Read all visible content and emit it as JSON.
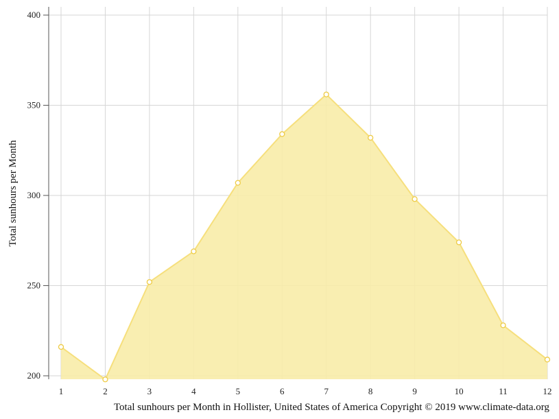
{
  "chart_data": {
    "type": "area",
    "x": [
      1,
      2,
      3,
      4,
      5,
      6,
      7,
      8,
      9,
      10,
      11,
      12
    ],
    "series": [
      {
        "values": [
          216,
          198,
          252,
          269,
          307,
          334,
          356,
          332,
          298,
          274,
          228,
          209
        ]
      }
    ],
    "xlabel": "",
    "ylabel": "Total sunhours per Month",
    "ylim": [
      200,
      400
    ],
    "yticks": [
      200,
      250,
      300,
      350,
      400
    ],
    "xticks": [
      1,
      2,
      3,
      4,
      5,
      6,
      7,
      8,
      9,
      10,
      11,
      12
    ],
    "grid": true,
    "fill_color": "#f8eca9",
    "line_color": "#f6df7c",
    "marker_stroke": "#eecb45",
    "caption": "Total sunhours per Month in Hollister, United States of America Copyright © 2019 www.climate-data.org"
  }
}
